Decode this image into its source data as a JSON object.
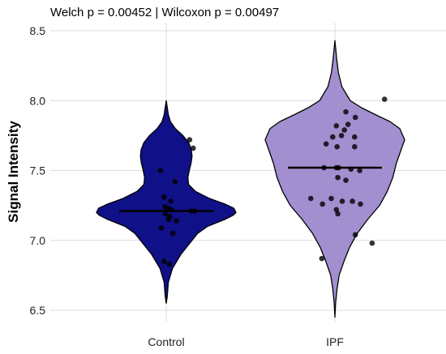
{
  "chart_data": {
    "type": "violin",
    "title": "Welch p = 0.00452 | Wilcoxon p = 0.00497",
    "xlabel": "",
    "ylabel": "Signal Intensity",
    "ylim": [
      6.45,
      8.55
    ],
    "yticks": [
      "6.5",
      "7.0",
      "7.5",
      "8.0",
      "8.5"
    ],
    "grid": true,
    "legend": "none",
    "categories": [
      "Control",
      "IPF"
    ],
    "groups": [
      {
        "category": "Control",
        "color": "#101088",
        "median": 7.21,
        "y_range": [
          6.55,
          8.0
        ],
        "density": [
          [
            6.55,
            0.0
          ],
          [
            6.6,
            0.015
          ],
          [
            6.7,
            0.03
          ],
          [
            6.8,
            0.09
          ],
          [
            6.9,
            0.21
          ],
          [
            6.95,
            0.29
          ],
          [
            7.0,
            0.37
          ],
          [
            7.05,
            0.45
          ],
          [
            7.1,
            0.59
          ],
          [
            7.15,
            0.84
          ],
          [
            7.18,
            0.96
          ],
          [
            7.2,
            1.0
          ],
          [
            7.23,
            0.97
          ],
          [
            7.26,
            0.84
          ],
          [
            7.3,
            0.62
          ],
          [
            7.35,
            0.42
          ],
          [
            7.4,
            0.32
          ],
          [
            7.45,
            0.31
          ],
          [
            7.5,
            0.33
          ],
          [
            7.55,
            0.355
          ],
          [
            7.6,
            0.37
          ],
          [
            7.65,
            0.36
          ],
          [
            7.7,
            0.32
          ],
          [
            7.75,
            0.24
          ],
          [
            7.8,
            0.13
          ],
          [
            7.85,
            0.06
          ],
          [
            7.9,
            0.03
          ],
          [
            7.95,
            0.015
          ],
          [
            8.0,
            0.0
          ]
        ],
        "points": [
          [
            -0.08,
            7.5
          ],
          [
            0.32,
            7.72
          ],
          [
            0.37,
            7.66
          ],
          [
            0.12,
            7.42
          ],
          [
            -0.03,
            7.31
          ],
          [
            0.06,
            7.28
          ],
          [
            -0.02,
            7.24
          ],
          [
            0.03,
            7.23
          ],
          [
            0.07,
            7.22
          ],
          [
            0.35,
            7.21
          ],
          [
            0.39,
            7.21
          ],
          [
            -0.01,
            7.19
          ],
          [
            0.05,
            7.17
          ],
          [
            0.03,
            7.15
          ],
          [
            0.14,
            7.14
          ],
          [
            -0.07,
            7.09
          ],
          [
            0.09,
            7.05
          ],
          [
            -0.03,
            6.85
          ],
          [
            0.04,
            6.83
          ]
        ]
      },
      {
        "category": "IPF",
        "color": "#a28fd0",
        "median": 7.52,
        "y_range": [
          6.45,
          8.43
        ],
        "density": [
          [
            6.45,
            0.0
          ],
          [
            6.55,
            0.01
          ],
          [
            6.65,
            0.03
          ],
          [
            6.75,
            0.06
          ],
          [
            6.85,
            0.13
          ],
          [
            6.95,
            0.21
          ],
          [
            7.05,
            0.32
          ],
          [
            7.15,
            0.47
          ],
          [
            7.25,
            0.64
          ],
          [
            7.35,
            0.75
          ],
          [
            7.45,
            0.83
          ],
          [
            7.55,
            0.88
          ],
          [
            7.65,
            0.95
          ],
          [
            7.72,
            1.0
          ],
          [
            7.8,
            0.93
          ],
          [
            7.85,
            0.79
          ],
          [
            7.9,
            0.58
          ],
          [
            7.95,
            0.38
          ],
          [
            8.0,
            0.22
          ],
          [
            8.1,
            0.1
          ],
          [
            8.2,
            0.05
          ],
          [
            8.3,
            0.025
          ],
          [
            8.43,
            0.0
          ]
        ],
        "points": [
          [
            0.68,
            8.01
          ],
          [
            0.15,
            7.92
          ],
          [
            0.28,
            7.88
          ],
          [
            0.18,
            7.83
          ],
          [
            0.02,
            7.82
          ],
          [
            0.13,
            7.79
          ],
          [
            0.27,
            7.74
          ],
          [
            0.09,
            7.75
          ],
          [
            -0.03,
            7.74
          ],
          [
            -0.12,
            7.69
          ],
          [
            0.03,
            7.67
          ],
          [
            0.27,
            7.67
          ],
          [
            0.02,
            7.52
          ],
          [
            0.05,
            7.52
          ],
          [
            -0.15,
            7.52
          ],
          [
            0.22,
            7.51
          ],
          [
            0.34,
            7.5
          ],
          [
            0.04,
            7.45
          ],
          [
            0.15,
            7.43
          ],
          [
            -0.05,
            7.3
          ],
          [
            -0.33,
            7.3
          ],
          [
            0.1,
            7.28
          ],
          [
            0.24,
            7.28
          ],
          [
            -0.17,
            7.26
          ],
          [
            0.35,
            7.26
          ],
          [
            0.02,
            7.22
          ],
          [
            0.04,
            7.19
          ],
          [
            0.28,
            7.04
          ],
          [
            0.51,
            6.98
          ],
          [
            -0.18,
            6.87
          ]
        ]
      }
    ]
  }
}
